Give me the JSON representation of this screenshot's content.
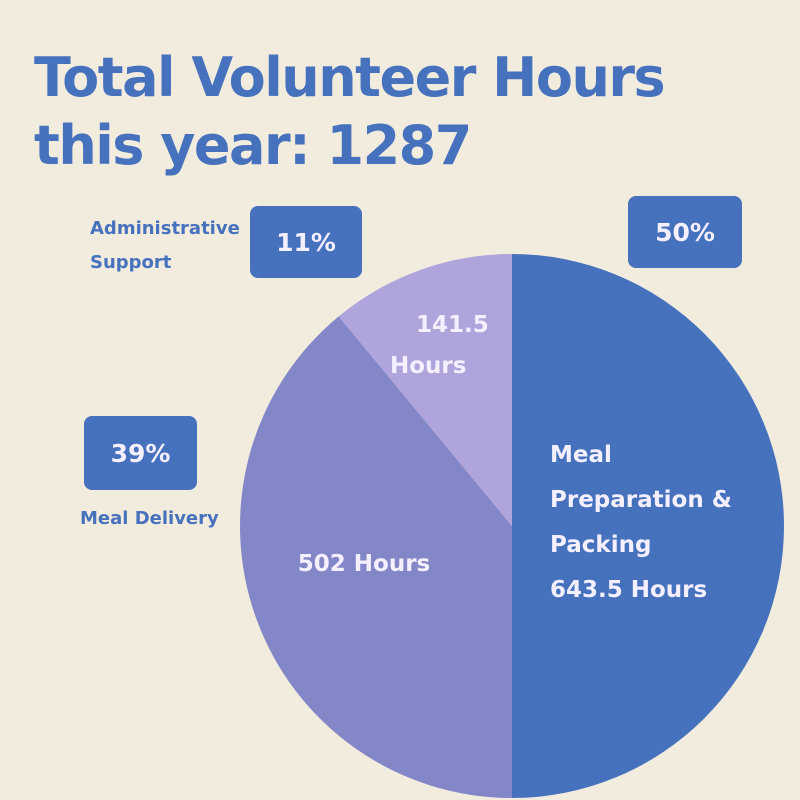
{
  "title": {
    "line1": "Total Volunteer Hours",
    "line2": "this year: 1287"
  },
  "colors": {
    "background": "#f2ecdf",
    "accent": "#4671bd",
    "slice_meal_prep": "#4671bd",
    "slice_meal_delivery": "#8387c8",
    "slice_admin": "#b0a4dd",
    "slice_text": "#f4f0ff"
  },
  "legend": {
    "admin": {
      "label_line1": "Administrative",
      "label_line2": "Support",
      "percent": "11%"
    },
    "delivery": {
      "label": "Meal Delivery",
      "percent": "39%"
    },
    "prep": {
      "percent": "50%"
    }
  },
  "chart_data": {
    "type": "pie",
    "title": "Total Volunteer Hours this year: 1287",
    "slices": [
      {
        "name": "Meal Preparation & Packing",
        "value": 643.5,
        "percent": 50,
        "label_lines": [
          "Meal",
          "Preparation &",
          "Packing",
          "643.5 Hours"
        ]
      },
      {
        "name": "Meal Delivery",
        "value": 502,
        "percent": 39,
        "label_lines": [
          "502 Hours"
        ]
      },
      {
        "name": "Administrative Support",
        "value": 141.5,
        "percent": 11,
        "label_lines": [
          "141.5",
          "Hours"
        ]
      }
    ]
  }
}
